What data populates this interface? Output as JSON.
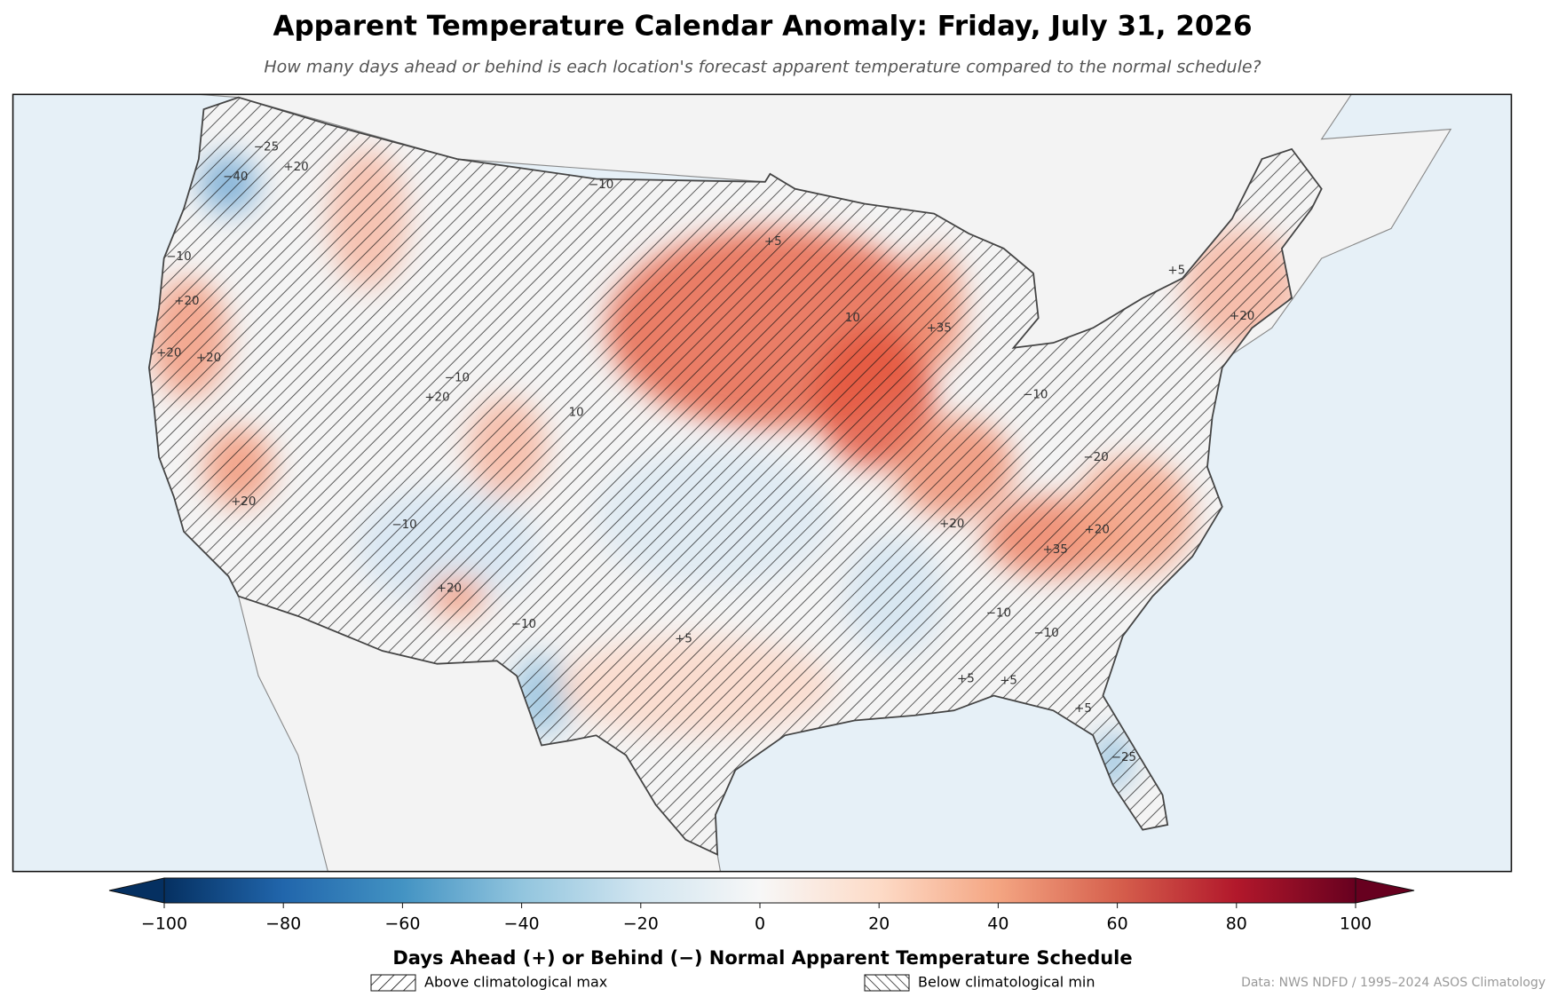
{
  "header": {
    "title": "Apparent Temperature Calendar Anomaly: Friday, July 31, 2026",
    "subtitle": "How many days ahead or behind is each location's forecast apparent temperature compared to the normal schedule?"
  },
  "map": {
    "contour_labels": [
      "−40",
      "−25",
      "+20",
      "−10",
      "+20",
      "+20",
      "+20",
      "−10",
      "+5",
      "10",
      "+35",
      "−10",
      "+20",
      "10",
      "−10",
      "−20",
      "+20",
      "+35",
      "+20",
      "−10",
      "−10",
      "−10",
      "+5",
      "+5",
      "+5",
      "−10",
      "+20",
      "+20",
      "−25",
      "+5",
      "+20",
      "+5"
    ]
  },
  "colorbar": {
    "label": "Days Ahead (+) or Behind (−) Normal Apparent Temperature Schedule",
    "lim": [
      -100,
      100
    ],
    "ticks": [
      {
        "value": -100,
        "label": "−100"
      },
      {
        "value": -80,
        "label": "−80"
      },
      {
        "value": -60,
        "label": "−60"
      },
      {
        "value": -40,
        "label": "−40"
      },
      {
        "value": -20,
        "label": "−20"
      },
      0,
      20,
      40,
      60,
      80,
      100
    ],
    "colors": [
      "#053061",
      "#2166ac",
      "#4393c3",
      "#92c5de",
      "#d1e5f0",
      "#f7f7f7",
      "#fddbc7",
      "#f4a582",
      "#d6604d",
      "#b2182b",
      "#67001f"
    ]
  },
  "legend": [
    {
      "label": "Above climatological max"
    },
    {
      "label": "Below climatological min"
    }
  ],
  "source": "Data: NWS NDFD / 1995–2024 ASOS Climatology"
}
